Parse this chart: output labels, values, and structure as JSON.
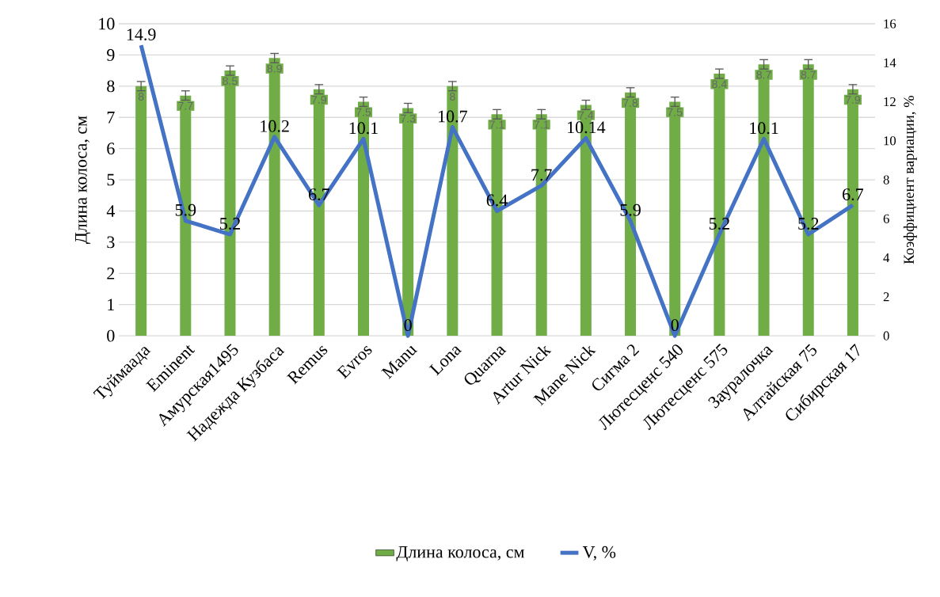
{
  "chart_data": {
    "type": "bar",
    "categories": [
      "Туймаада",
      "Eminent",
      "Амурская1495",
      "Надежда Кузбаса",
      "Remus",
      "Evros",
      "Manu",
      "Lona",
      "Quarna",
      "Artur Nick",
      "Mane Nick",
      "Сигма 2",
      "Лютесценс 540",
      "Лютесценс 575",
      "Зауралочка",
      "Алтайская 75",
      "Сибирская 17"
    ],
    "ylabel": "Длина колоса, см",
    "y2label": "Коэффициент вариации, %",
    "ylim": [
      0,
      10
    ],
    "yticks": [
      0,
      1,
      2,
      3,
      4,
      5,
      6,
      7,
      8,
      9,
      10
    ],
    "y2lim": [
      0,
      16
    ],
    "y2ticks": [
      0,
      2,
      4,
      6,
      8,
      10,
      12,
      14,
      16
    ],
    "grid": "y",
    "legend": "bottom",
    "series": [
      {
        "name": "Длина колоса, см",
        "color": "#70ad47",
        "values": [
          8,
          7.7,
          8.5,
          8.9,
          7.9,
          7.5,
          7.3,
          8,
          7.1,
          7.1,
          7.4,
          7.8,
          7.5,
          8.4,
          8.7,
          8.7,
          7.9
        ],
        "errors": [
          0.15,
          0.15,
          0.15,
          0.15,
          0.15,
          0.15,
          0.15,
          0.15,
          0.15,
          0.15,
          0.15,
          0.15,
          0.15,
          0.15,
          0.15,
          0.15,
          0.15
        ],
        "value_labels": [
          "8",
          "7.7",
          "8.5",
          "8.9",
          "7.9",
          "7.5",
          "7.3",
          "8",
          "7.1",
          "7.1",
          "7.4",
          "7.8",
          "7.5",
          "8.4",
          "8.7",
          "8.7",
          "7.9"
        ]
      },
      {
        "name": "V, %",
        "type": "line",
        "axis": "y2",
        "color": "#4472c4",
        "values": [
          14.9,
          5.9,
          5.2,
          10.2,
          6.7,
          10.1,
          0,
          10.7,
          6.4,
          7.7,
          10.14,
          5.9,
          0,
          5.2,
          10.1,
          5.2,
          6.7
        ],
        "value_labels": [
          "14.9",
          "5.9",
          "5.2",
          "10.2",
          "6.7",
          "10.1",
          "0",
          "10.7",
          "6.4",
          "7.7",
          "10.14",
          "5.9",
          "0",
          "5.2",
          "10.1",
          "5.2",
          "6.7"
        ]
      }
    ]
  }
}
